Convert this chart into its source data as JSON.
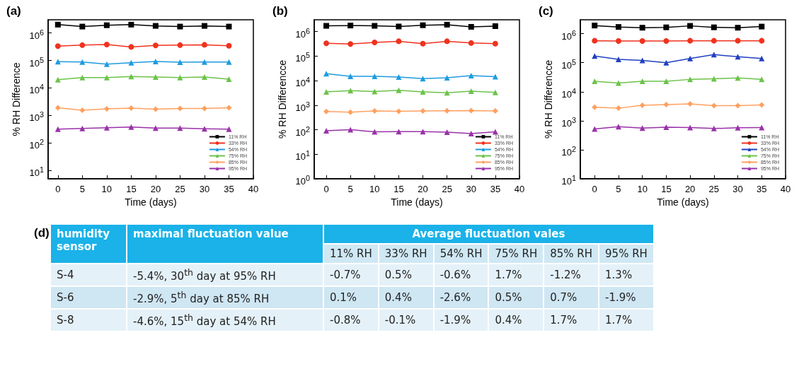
{
  "chart_data": [
    {
      "type": "line",
      "title": "(a)",
      "xlabel": "Time (days)",
      "ylabel": "% RH Difference",
      "log": "y",
      "grid": false,
      "legend": "bottom right",
      "line_style": "solid",
      "x": [
        0,
        5,
        10,
        15,
        20,
        25,
        30,
        35
      ],
      "xlim": [
        -2,
        40
      ],
      "xticks": [
        0,
        5,
        10,
        15,
        20,
        25,
        30,
        35,
        40
      ],
      "ylim": [
        5,
        3000000
      ],
      "yticks": [
        {
          "value": 10,
          "label": "10$^{1}$"
        },
        {
          "value": 100,
          "label": "10$^{2}$"
        },
        {
          "value": 1000,
          "label": "10$^{3}$"
        },
        {
          "value": 10000,
          "label": "10$^{4}$"
        },
        {
          "value": 100000,
          "label": "10$^{5}$"
        },
        {
          "value": 1000000,
          "label": "10$^{6}$"
        }
      ],
      "series": [
        {
          "name": "11% RH",
          "color": "#000000",
          "marker": "square",
          "values": [
            2000000,
            1700000,
            1900000,
            2000000,
            1800000,
            1700000,
            1800000,
            1700000
          ]
        },
        {
          "name": "33% RH",
          "color": "#f0321e",
          "marker": "circle",
          "values": [
            330000,
            360000,
            380000,
            310000,
            350000,
            360000,
            370000,
            340000
          ]
        },
        {
          "name": "54% RH",
          "color": "#1e9be0",
          "marker": "triangle",
          "values": [
            90000,
            88000,
            73000,
            83000,
            92000,
            86000,
            88000,
            88000
          ]
        },
        {
          "name": "75% RH",
          "color": "#6cc24a",
          "marker": "triangle",
          "values": [
            20000,
            24000,
            24000,
            26000,
            25000,
            24000,
            25000,
            21000
          ]
        },
        {
          "name": "85% RH",
          "color": "#ffa060",
          "marker": "diamond",
          "values": [
            1900,
            1550,
            1750,
            1850,
            1700,
            1800,
            1800,
            1900
          ]
        },
        {
          "name": "95% RH",
          "color": "#9932a8",
          "marker": "triangle",
          "values": [
            320,
            340,
            360,
            380,
            350,
            350,
            330,
            320
          ]
        }
      ]
    },
    {
      "type": "line",
      "title": "(b)",
      "xlabel": "Time (days)",
      "ylabel": "% RH Differencce",
      "log": "y",
      "grid": false,
      "legend": "bottom right",
      "line_style": "solid",
      "x": [
        0,
        5,
        10,
        15,
        20,
        25,
        30,
        35
      ],
      "xlim": [
        -2.5,
        40
      ],
      "xticks": [
        0,
        5,
        10,
        15,
        20,
        25,
        30,
        35,
        40
      ],
      "ylim": [
        1,
        3000000
      ],
      "yticks": [
        {
          "value": 1,
          "label": "10$^{0}$"
        },
        {
          "value": 10,
          "label": "10$^{1}$"
        },
        {
          "value": 100,
          "label": "10$^{2}$"
        },
        {
          "value": 1000,
          "label": "10$^{3}$"
        },
        {
          "value": 10000,
          "label": "10$^{4}$"
        },
        {
          "value": 100000,
          "label": "10$^{5}$"
        },
        {
          "value": 1000000,
          "label": "10$^{6}$"
        }
      ],
      "series": [
        {
          "name": "11% RH",
          "color": "#000000",
          "marker": "square",
          "values": [
            1700000,
            1750000,
            1700000,
            1600000,
            1800000,
            1900000,
            1550000,
            1650000
          ]
        },
        {
          "name": "33% RH",
          "color": "#f0321e",
          "marker": "circle",
          "values": [
            330000,
            310000,
            360000,
            400000,
            320000,
            400000,
            340000,
            320000
          ]
        },
        {
          "name": "54% RH",
          "color": "#1e9be0",
          "marker": "triangle",
          "values": [
            19000,
            15000,
            15000,
            14000,
            12000,
            13000,
            16000,
            14500
          ]
        },
        {
          "name": "75% RH",
          "color": "#6cc24a",
          "marker": "triangle",
          "values": [
            3500,
            3900,
            3600,
            4000,
            3500,
            3200,
            3700,
            3300
          ]
        },
        {
          "name": "85% RH",
          "color": "#ffa060",
          "marker": "diamond",
          "values": [
            550,
            520,
            580,
            560,
            580,
            590,
            600,
            580
          ]
        },
        {
          "name": "95% RH",
          "color": "#9932a8",
          "marker": "triangle",
          "values": [
            90,
            100,
            82,
            83,
            83,
            80,
            70,
            82
          ]
        }
      ]
    },
    {
      "type": "line",
      "title": "(c)",
      "xlabel": "Time (days)",
      "ylabel": "% RH Differencce",
      "log": "y",
      "grid": false,
      "legend": "bottom right",
      "line_style": "solid",
      "x": [
        0,
        5,
        10,
        15,
        20,
        25,
        30,
        35
      ],
      "xlim": [
        -3,
        40
      ],
      "xticks": [
        0,
        5,
        10,
        15,
        20,
        25,
        30,
        35,
        40
      ],
      "ylim": [
        10,
        3000000
      ],
      "yticks": [
        {
          "value": 10,
          "label": "10$^{1}$"
        },
        {
          "value": 100,
          "label": "10$^{2}$"
        },
        {
          "value": 1000,
          "label": "10$^{3}$"
        },
        {
          "value": 10000,
          "label": "10$^{4}$"
        },
        {
          "value": 100000,
          "label": "10$^{5}$"
        },
        {
          "value": 1000000,
          "label": "10$^{6}$"
        }
      ],
      "series": [
        {
          "name": "11% RH",
          "color": "#000000",
          "marker": "square",
          "values": [
            1900000,
            1700000,
            1600000,
            1650000,
            1850000,
            1650000,
            1600000,
            1750000
          ]
        },
        {
          "name": "33% RH",
          "color": "#f0321e",
          "marker": "circle",
          "values": [
            570000,
            560000,
            560000,
            560000,
            570000,
            570000,
            570000,
            570000
          ]
        },
        {
          "name": "54% RH",
          "color": "#2040c0",
          "marker": "triangle",
          "values": [
            170000,
            130000,
            120000,
            100000,
            140000,
            190000,
            160000,
            140000
          ]
        },
        {
          "name": "75% RH",
          "color": "#6cc24a",
          "marker": "triangle",
          "values": [
            23000,
            20000,
            23000,
            23000,
            26500,
            28000,
            30000,
            26500
          ]
        },
        {
          "name": "85% RH",
          "color": "#ffa060",
          "marker": "diamond",
          "values": [
            2900,
            2700,
            3400,
            3600,
            3800,
            3300,
            3300,
            3500
          ]
        },
        {
          "name": "95% RH",
          "color": "#9932a8",
          "marker": "triangle",
          "values": [
            520,
            620,
            560,
            600,
            580,
            540,
            570,
            580
          ]
        }
      ]
    },
    {
      "type": "other",
      "title": "(d)",
      "subtitle": "Average fluctuation vales",
      "categories": [
        "humidity sensor",
        "maximal fluctuation value",
        "11% RH",
        "33% RH",
        "54% RH",
        "75% RH",
        "85% RH",
        "95% RH"
      ],
      "y_categories": [
        "S-4",
        "S-6",
        "S-8"
      ],
      "cell_labels": [
        [
          "-5.4%, 30$^{th}$ day at 95% RH",
          "-0.7%",
          "0.5%",
          "-0.6%",
          "1.7%",
          "-1.2%",
          "1.3%"
        ],
        [
          "-2.9%, 5$^{th}$ day at 85% RH",
          "0.1%",
          "0.4%",
          "-2.6%",
          "0.5%",
          "0.7%",
          "-1.9%"
        ],
        [
          "-4.6%, 15$^{th}$ day at 54% RH",
          "-0.8%",
          "-0.1%",
          "-1.9%",
          "0.4%",
          "1.7%",
          "1.7%"
        ]
      ]
    }
  ]
}
